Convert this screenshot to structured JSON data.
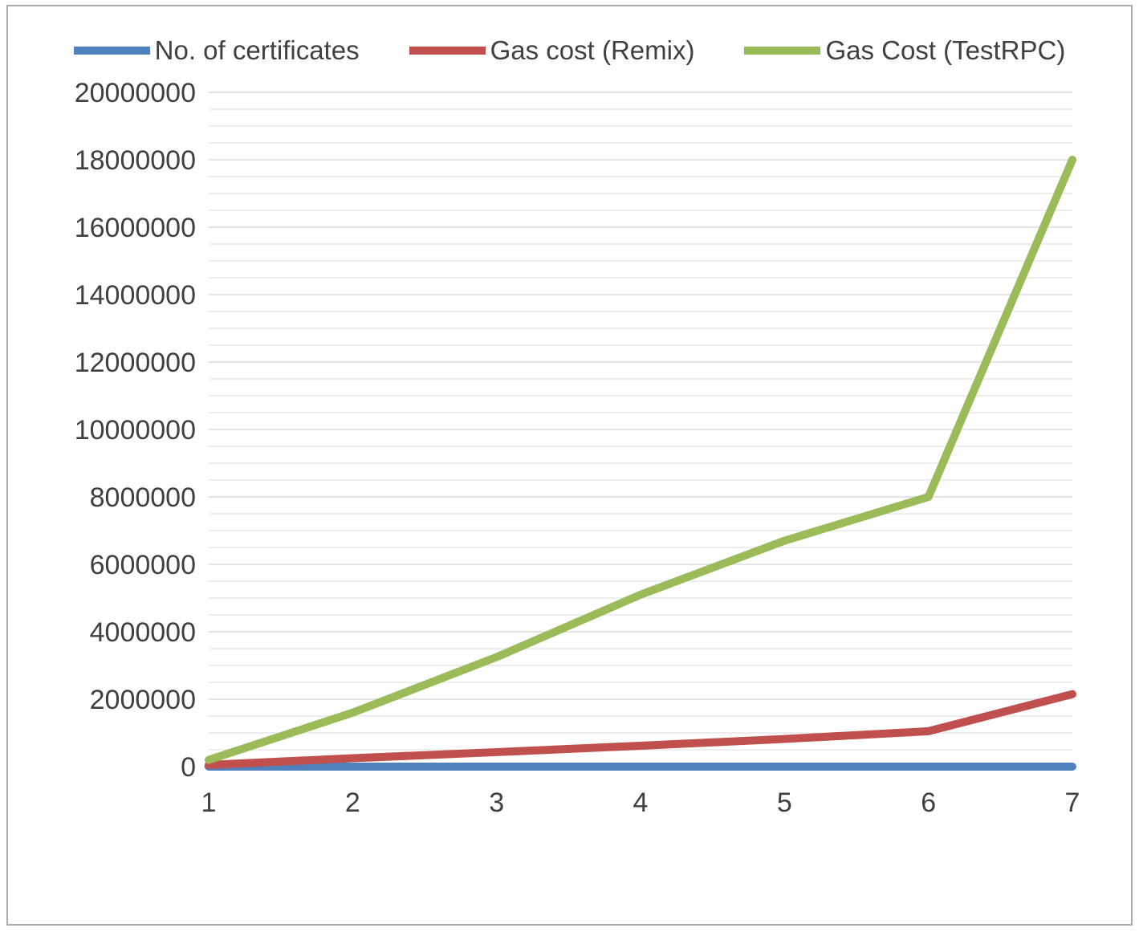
{
  "figure": {
    "background": "#ffffff",
    "border_color": "#ababab"
  },
  "chart_data": {
    "type": "line",
    "title": "",
    "xlabel": "",
    "ylabel": "",
    "x": [
      1,
      2,
      3,
      4,
      5,
      6,
      7
    ],
    "x_tick_labels": [
      "1",
      "2",
      "3",
      "4",
      "5",
      "6",
      "7"
    ],
    "ylim": [
      0,
      20000000
    ],
    "y_major_step": 2000000,
    "y_minor_step": 500000,
    "y_tick_labels": [
      "0",
      "2000000",
      "4000000",
      "6000000",
      "8000000",
      "10000000",
      "12000000",
      "14000000",
      "16000000",
      "18000000",
      "20000000"
    ],
    "grid": "horizontal-minor",
    "legend_position": "top",
    "series": [
      {
        "name": "No. of certificates",
        "color": "#4F81BD",
        "values": [
          1,
          2,
          3,
          4,
          5,
          6,
          7
        ]
      },
      {
        "name": "Gas cost (Remix)",
        "color": "#C0504D",
        "values": [
          50000,
          250000,
          430000,
          620000,
          820000,
          1050000,
          2150000
        ]
      },
      {
        "name": "Gas Cost (TestRPC)",
        "color": "#9BBB59",
        "values": [
          200000,
          1600000,
          3250000,
          5100000,
          6700000,
          8000000,
          18000000
        ]
      }
    ]
  },
  "style": {
    "text_color": "#404040",
    "grid_minor_color": "#e3e3e3",
    "grid_major_color": "#d5d5d5",
    "axis_line_color": "#9c9c9c",
    "line_width": 10,
    "tick_font_size": 34
  }
}
